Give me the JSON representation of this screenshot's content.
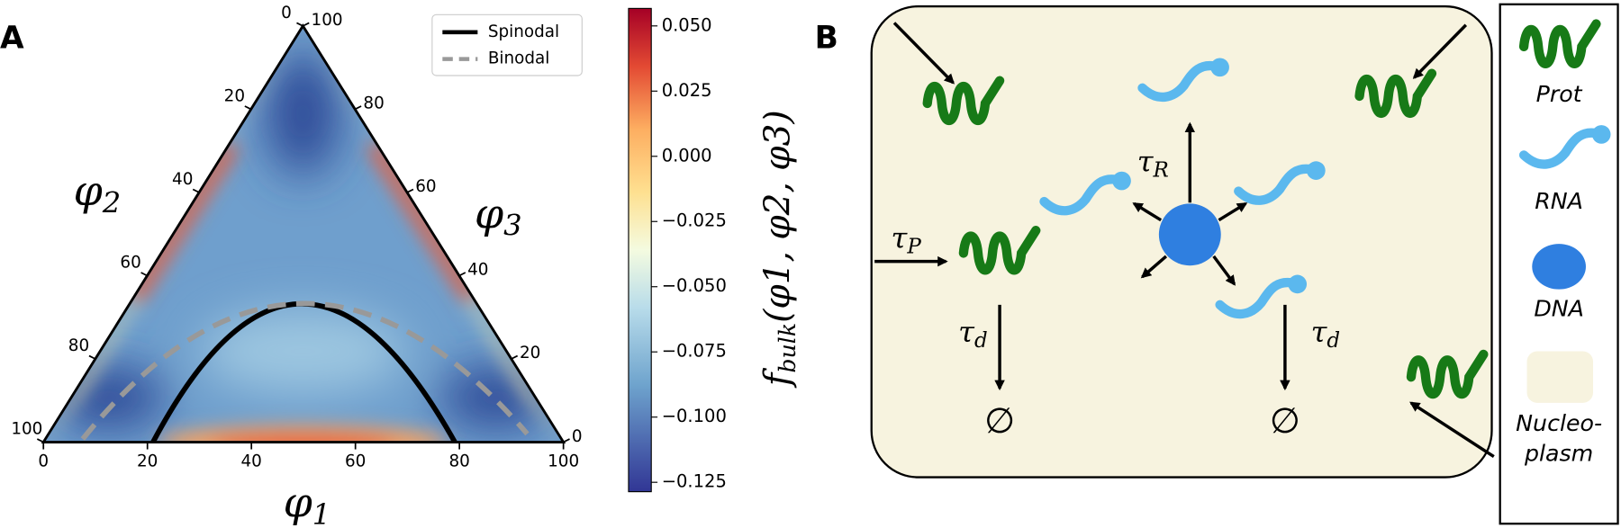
{
  "panel_a": {
    "label": "A",
    "ternary": {
      "ticks": [
        0,
        20,
        40,
        60,
        80,
        100
      ],
      "axis_labels": [
        {
          "symbol": "φ",
          "sub": "1"
        },
        {
          "symbol": "φ",
          "sub": "2"
        },
        {
          "symbol": "φ",
          "sub": "3"
        }
      ]
    },
    "legend": [
      "Spinodal",
      "Binodal"
    ],
    "colorbar": {
      "clim": [
        -0.1286,
        0.0567
      ],
      "ticks": [
        {
          "value": 0.05,
          "label": "0.050"
        },
        {
          "value": 0.025,
          "label": "0.025"
        },
        {
          "value": 0,
          "label": "0.000"
        },
        {
          "value": -0.025,
          "label": "−0.025"
        },
        {
          "value": -0.05,
          "label": "−0.050"
        },
        {
          "value": -0.075,
          "label": "−0.075"
        },
        {
          "value": -0.1,
          "label": "−0.100"
        },
        {
          "value": -0.125,
          "label": "−0.125"
        }
      ],
      "label": {
        "f": "f",
        "sub": "bulk",
        "args": "(φ1, φ2, φ3)"
      }
    }
  },
  "panel_b": {
    "label": "B",
    "rates": [
      {
        "symbol": "τ",
        "sub": "R"
      },
      {
        "symbol": "τ",
        "sub": "P"
      },
      {
        "symbol": "τ",
        "sub": "d"
      },
      {
        "symbol": "τ",
        "sub": "d"
      }
    ],
    "sinks": [
      "∅",
      "∅"
    ],
    "legend": [
      "Prot",
      "RNA",
      "DNA",
      "Nucleo-",
      "plasm"
    ]
  }
}
